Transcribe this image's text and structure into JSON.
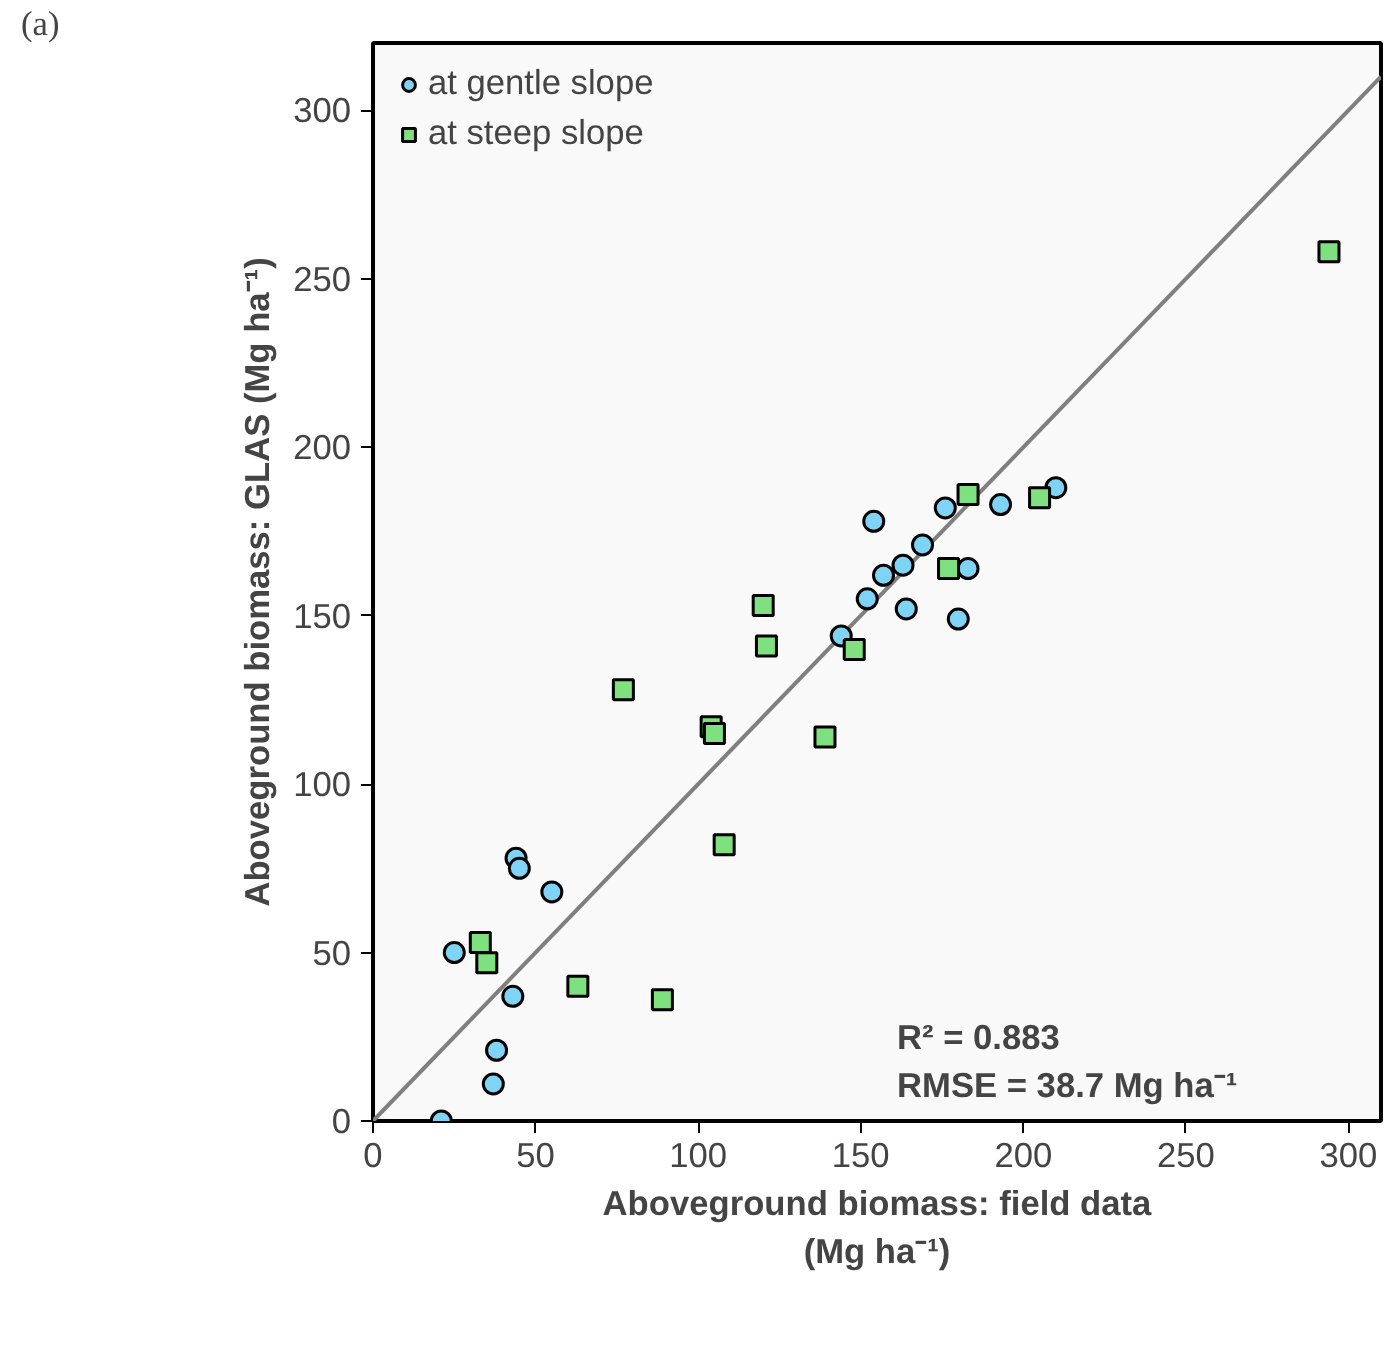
{
  "chart_data": {
    "type": "scatter",
    "xlabel": "Aboveground biomass: field data\n(Mg ha⁻¹)",
    "ylabel": "Aboveground biomass: GLAS (Mg ha⁻¹)",
    "xlim": [
      0,
      310
    ],
    "ylim": [
      0,
      320
    ],
    "xticks": [
      0,
      50,
      100,
      150,
      200,
      250,
      300
    ],
    "yticks": [
      0,
      50,
      100,
      150,
      200,
      250,
      300
    ],
    "grid": false,
    "legend": "top left",
    "annotations": [
      "(a)",
      "R² = 0.883",
      "RMSE = 38.7 Mg ha⁻¹"
    ],
    "series": [
      {
        "name": "at gentle slope",
        "color": "#7fd3f5",
        "marker": "circle",
        "x": [
          21,
          25,
          37,
          38,
          43,
          44,
          45,
          55,
          144,
          152,
          154,
          157,
          163,
          164,
          169,
          176,
          180,
          183,
          193,
          210
        ],
        "values": [
          0,
          50,
          11,
          21,
          37,
          78,
          75,
          68,
          144,
          155,
          178,
          162,
          165,
          152,
          171,
          182,
          149,
          164,
          183,
          188
        ]
      },
      {
        "name": "at steep slope",
        "color": "#7fe07f",
        "marker": "square",
        "x": [
          33,
          35,
          63,
          77,
          89,
          104,
          105,
          108,
          120,
          121,
          139,
          148,
          177,
          183,
          205,
          294
        ],
        "values": [
          53,
          47,
          40,
          128,
          36,
          117,
          115,
          82,
          153,
          141,
          114,
          140,
          164,
          186,
          185,
          258
        ]
      },
      {
        "type": "line",
        "color": "#7f7f7f",
        "x": [
          0,
          310
        ],
        "values": [
          0,
          310
        ]
      }
    ]
  }
}
